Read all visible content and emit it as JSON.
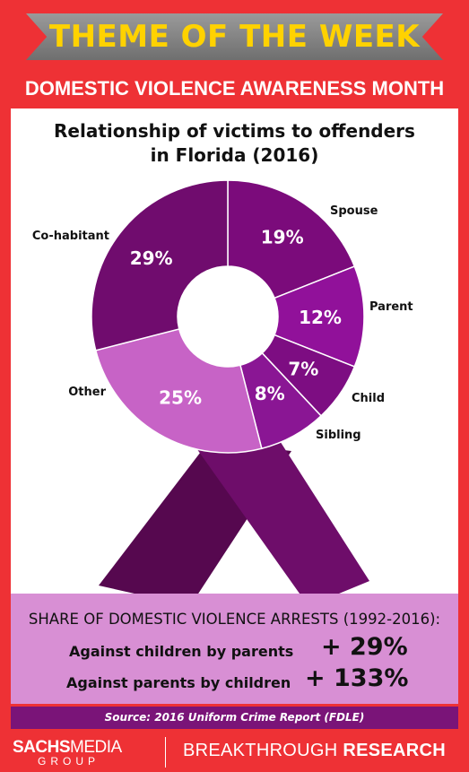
{
  "header": {
    "title": "THEME OF THE WEEK",
    "subtitle": "DOMESTIC VIOLENCE AWARENESS MONTH"
  },
  "chart_data": {
    "type": "pie",
    "title": [
      "Relationship of victims to offenders",
      "in Florida (2016)"
    ],
    "unit": "%",
    "slices": [
      {
        "label": "Spouse",
        "value": 19,
        "color": "#7b0b7b"
      },
      {
        "label": "Parent",
        "value": 12,
        "color": "#91119a"
      },
      {
        "label": "Child",
        "value": 7,
        "color": "#7d0d82"
      },
      {
        "label": "Sibling",
        "value": 8,
        "color": "#8a1694"
      },
      {
        "label": "Other",
        "value": 25,
        "color": "#c763c6"
      },
      {
        "label": "Co-habitant",
        "value": 29,
        "color": "#700c6e"
      }
    ],
    "ribbon_color": "#6e0d6a"
  },
  "arrests": {
    "heading": "SHARE OF DOMESTIC VIOLENCE ARRESTS (1992-2016):",
    "rows": [
      {
        "label": "Against children by parents",
        "value": "+ 29%"
      },
      {
        "label": "Against parents by children",
        "value": "+ 133%"
      }
    ]
  },
  "source": "Source: 2016 Uniform Crime Report (FDLE)",
  "footer": {
    "brand_part1": "SACHS",
    "brand_part2": "MEDIA",
    "brand_group": "GROUP",
    "tagline_part1": "BREAKTHROUGH ",
    "tagline_part2": "RESEARCH"
  },
  "colors": {
    "background": "#ee3135",
    "title_text": "#ffd200",
    "arrests_panel": "#d88fd4",
    "source_bar": "#7a1478"
  }
}
